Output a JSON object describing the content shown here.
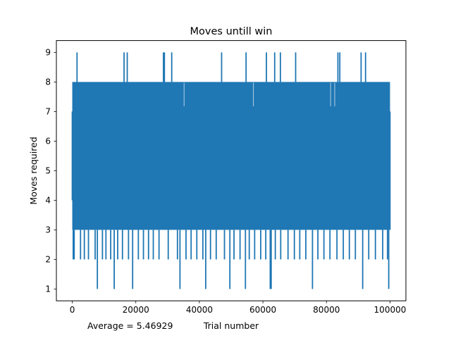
{
  "chart_data": {
    "type": "line",
    "title": "Moves untill win",
    "xlabel": "Trial number",
    "ylabel": "Moves required",
    "xlim": [
      -5000,
      105000
    ],
    "ylim": [
      0.6,
      9.4
    ],
    "x_ticks": [
      0,
      20000,
      40000,
      60000,
      80000,
      100000
    ],
    "y_ticks": [
      1,
      2,
      3,
      4,
      5,
      6,
      7,
      8,
      9
    ],
    "grid": false,
    "series": [
      {
        "color": "#1f77b4",
        "x_range": [
          0,
          100000
        ],
        "dense_band": [
          3,
          8
        ],
        "spikes_to_9": [
          1500,
          16300,
          17300,
          28700,
          29000,
          31300,
          47000,
          54700,
          61100,
          63700,
          65500,
          70300,
          83600,
          84200,
          90900,
          92300
        ],
        "dips_to_1": [
          7900,
          13200,
          19000,
          33900,
          42000,
          49600,
          54500,
          62300,
          62600,
          75600,
          91400,
          99600
        ],
        "dips_to_2": [
          300,
          600,
          2600,
          3800,
          5100,
          7200,
          9500,
          10600,
          12100,
          14300,
          15800,
          17700,
          20800,
          22400,
          24000,
          25500,
          27300,
          30200,
          33100,
          35800,
          37400,
          39200,
          41100,
          43500,
          45300,
          47900,
          50900,
          52800,
          55700,
          57400,
          59300,
          60900,
          63900,
          65600,
          67900,
          69900,
          71600,
          73500,
          77300,
          79200,
          81100,
          83300,
          85300,
          87200,
          89100,
          93300,
          95400,
          97700,
          99200
        ],
        "gaps_above_3": [
          35200,
          57000,
          81300,
          82600
        ]
      }
    ],
    "annotation": "Average = 5.46929"
  }
}
